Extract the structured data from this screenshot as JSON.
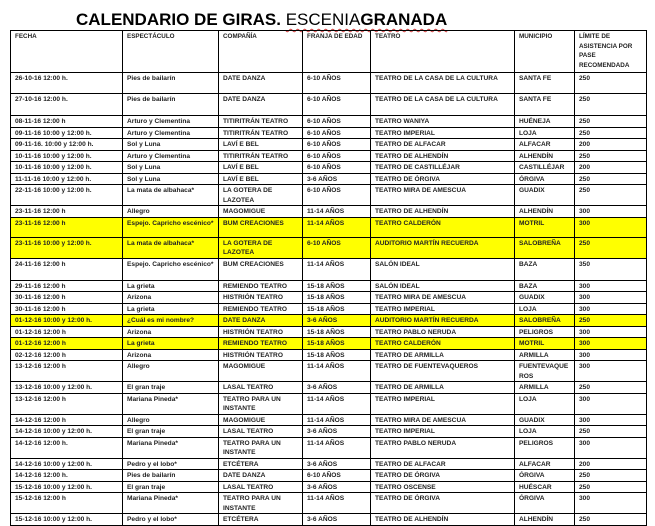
{
  "title": {
    "main": "CALENDARIO DE GIRAS.",
    "brand_prefix": "ESCENIA",
    "brand_suffix": "GRANADA"
  },
  "highlight_color": "#ffff00",
  "columns": [
    "FECHA",
    "ESPECTÁCULO",
    "COMPAÑÍA",
    "FRANJA DE EDAD",
    "TEATRO",
    "MUNICIPIO",
    "LÍMITE DE ASISTENCIA POR PASE RECOMENDADA"
  ],
  "rows": [
    {
      "fecha": "26-10-16 12:00 h.",
      "espectaculo": "Pies de bailarín",
      "compania": "DATE DANZA",
      "edad": "6-10 AÑOS",
      "teatro": "TEATRO DE LA CASA DE LA CULTURA",
      "municipio": "SANTA FE",
      "limite": "250",
      "highlighted": false
    },
    {
      "fecha": "27-10-16 12:00 h.",
      "espectaculo": "Pies de bailarín",
      "compania": "DATE DANZA",
      "edad": "6-10 AÑOS",
      "teatro": "TEATRO DE LA CASA DE LA CULTURA",
      "municipio": "SANTA FE",
      "limite": "250",
      "highlighted": false
    },
    {
      "fecha": "08-11-16  12:00 h",
      "espectaculo": "Arturo y Clementina",
      "compania": "TITIRITRÁN TEATRO",
      "edad": "6-10 AÑOS",
      "teatro": "TEATRO WANIYA",
      "municipio": "HUÉNEJA",
      "limite": "250",
      "highlighted": false
    },
    {
      "fecha": "09-11-16 10:00 y 12:00 h.",
      "espectaculo": "Arturo y Clementina",
      "compania": "TITIRITRÁN TEATRO",
      "edad": "6-10 AÑOS",
      "teatro": "TEATRO IMPERIAL",
      "municipio": "LOJA",
      "limite": "250",
      "highlighted": false
    },
    {
      "fecha": "09-11-16. 10:00 y 12:00 h.",
      "espectaculo": "Sol y Luna",
      "compania": "LAVÍ E BEL",
      "edad": "6-10 AÑOS",
      "teatro": "TEATRO DE ALFACAR",
      "municipio": "ALFACAR",
      "limite": "200",
      "highlighted": false
    },
    {
      "fecha": "10-11-16 10:00 y 12:00 h.",
      "espectaculo": "Arturo y Clementina",
      "compania": "TITIRITRÁN TEATRO",
      "edad": "6-10 AÑOS",
      "teatro": "TEATRO DE ALHENDÍN",
      "municipio": "ALHENDÍN",
      "limite": "250",
      "highlighted": false
    },
    {
      "fecha": "10-11-16 10:00 y 12:00 h.",
      "espectaculo": "Sol y Luna",
      "compania": "LAVÍ E BEL",
      "edad": "6-10 AÑOS",
      "teatro": "TEATRO DE CASTILLÉJAR",
      "municipio": "CASTILLÉJAR",
      "limite": "200",
      "highlighted": false
    },
    {
      "fecha": "11-11-16 10:00 y 12:00 h.",
      "espectaculo": "Sol y Luna",
      "compania": "LAVÍ E BEL",
      "edad": "3-6 AÑOS",
      "teatro": "TEATRO DE ÓRGIVA",
      "municipio": "ÓRGIVA",
      "limite": "250",
      "highlighted": false
    },
    {
      "fecha": "22-11-16 10:00 y 12:00 h.",
      "espectaculo": "La mata de albahaca*",
      "compania": "LA GOTERA DE LAZOTEA",
      "edad": "6-10 AÑOS",
      "teatro": "TEATRO MIRA DE AMESCUA",
      "municipio": "GUADIX",
      "limite": "250",
      "highlighted": false
    },
    {
      "fecha": "23-11-16 12:00 h",
      "espectaculo": "Allegro",
      "compania": "MAGOMIGUE",
      "edad": "11-14 AÑOS",
      "teatro": "TEATRO DE ALHENDÍN",
      "municipio": "ALHENDÍN",
      "limite": "300",
      "highlighted": false
    },
    {
      "fecha": "23-11-16 12:00 h",
      "espectaculo": "Espejo. Capricho escénico*",
      "compania": "BUM CREACIONES",
      "edad": "11-14 AÑOS",
      "teatro": "TEATRO CALDERÓN",
      "municipio": "MOTRIL",
      "limite": "300",
      "highlighted": true
    },
    {
      "fecha": "23-11-16 10:00 y 12:00 h.",
      "espectaculo": "La mata de albahaca*",
      "compania": "LA GOTERA DE LAZOTEA",
      "edad": "6-10 AÑOS",
      "teatro": "AUDITORIO MARTÍN RECUERDA",
      "municipio": "SALOBREÑA",
      "limite": "250",
      "highlighted": true
    },
    {
      "fecha": "24-11-16 12:00 h",
      "espectaculo": "Espejo. Capricho escénico*",
      "compania": "BUM CREACIONES",
      "edad": "11-14 AÑOS",
      "teatro": "SALÓN IDEAL",
      "municipio": "BAZA",
      "limite": "350",
      "highlighted": false
    },
    {
      "fecha": "29-11-16 12:00 h",
      "espectaculo": "La grieta",
      "compania": "REMIENDO TEATRO",
      "edad": "15-18 AÑOS",
      "teatro": "SALÓN IDEAL",
      "municipio": "BAZA",
      "limite": "300",
      "highlighted": false
    },
    {
      "fecha": "30-11-16 12:00 h",
      "espectaculo": "Arizona",
      "compania": "HISTRIÓN TEATRO",
      "edad": "15-18 AÑOS",
      "teatro": "TEATRO MIRA DE AMESCUA",
      "municipio": "GUADIX",
      "limite": "300",
      "highlighted": false
    },
    {
      "fecha": "30-11-16 12:00 h",
      "espectaculo": "La grieta",
      "compania": "REMIENDO TEATRO",
      "edad": "15-18 AÑOS",
      "teatro": "TEATRO IMPERIAL",
      "municipio": "LOJA",
      "limite": "300",
      "highlighted": false
    },
    {
      "fecha": "01-12-16 10:00 y 12:00 h.",
      "espectaculo": "¿Cuál es mi nombre?",
      "compania": "DATE DANZA",
      "edad": "3-6 AÑOS",
      "teatro": "AUDITORIO MARTÍN RECUERDA",
      "municipio": "SALOBREÑA",
      "limite": "250",
      "highlighted": true
    },
    {
      "fecha": "01-12-16 12:00 h",
      "espectaculo": "Arizona",
      "compania": "HISTRIÓN TEATRO",
      "edad": "15-18 AÑOS",
      "teatro": "TEATRO PABLO NERUDA",
      "municipio": "PELIGROS",
      "limite": "300",
      "highlighted": false
    },
    {
      "fecha": "01-12-16 12:00 h",
      "espectaculo": "La grieta",
      "compania": "REMIENDO TEATRO",
      "edad": "15-18 AÑOS",
      "teatro": "TEATRO CALDERÓN",
      "municipio": "MOTRIL",
      "limite": "300",
      "highlighted": true
    },
    {
      "fecha": "02-12-16 12:00 h",
      "espectaculo": "Arizona",
      "compania": "HISTRIÓN TEATRO",
      "edad": "15-18 AÑOS",
      "teatro": "TEATRO DE ARMILLA",
      "municipio": "ARMILLA",
      "limite": "300",
      "highlighted": false
    },
    {
      "fecha": "13-12-16 12:00 h",
      "espectaculo": "Allegro",
      "compania": "MAGOMIGUE",
      "edad": "11-14 AÑOS",
      "teatro": "TEATRO DE FUENTEVAQUEROS",
      "municipio": "FUENTEVAQUEROS",
      "limite": "300",
      "highlighted": false
    },
    {
      "fecha": "13-12-16 10:00 y 12:00 h.",
      "espectaculo": "El gran traje",
      "compania": "LASAL TEATRO",
      "edad": "3-6 AÑOS",
      "teatro": "TEATRO DE ARMILLA",
      "municipio": "ARMILLA",
      "limite": "250",
      "highlighted": false
    },
    {
      "fecha": "13-12-16 12:00 h",
      "espectaculo": "Mariana Pineda*",
      "compania": "TEATRO  PARA UN INSTANTE",
      "edad": "11-14 AÑOS",
      "teatro": "TEATRO IMPERIAL",
      "municipio": "LOJA",
      "limite": "300",
      "highlighted": false
    },
    {
      "fecha": "14-12-16 12:00 h",
      "espectaculo": "Allegro",
      "compania": "MAGOMIGUE",
      "edad": "11-14 AÑOS",
      "teatro": "TEATRO MIRA DE AMESCUA",
      "municipio": "GUADIX",
      "limite": "300",
      "highlighted": false
    },
    {
      "fecha": "14-12-16 10:00 y 12:00 h.",
      "espectaculo": "El gran traje",
      "compania": "LASAL TEATRO",
      "edad": "3-6 AÑOS",
      "teatro": "TEATRO IMPERIAL",
      "municipio": "LOJA",
      "limite": "250",
      "highlighted": false
    },
    {
      "fecha": "14-12-16 12:00 h.",
      "espectaculo": "Mariana Pineda*",
      "compania": "TEATRO  PARA UN INSTANTE",
      "edad": "11-14 AÑOS",
      "teatro": "TEATRO PABLO NERUDA",
      "municipio": "PELIGROS",
      "limite": "300",
      "highlighted": false
    },
    {
      "fecha": "14-12-16 10:00 y 12:00 h.",
      "espectaculo": "Pedro y el lobo*",
      "compania": "ETCÉTERA",
      "edad": "3-6 AÑOS",
      "teatro": "TEATRO DE ALFACAR",
      "municipio": "ALFACAR",
      "limite": "200",
      "highlighted": false
    },
    {
      "fecha": "14-12-16 12:00 h.",
      "espectaculo": "Pies de bailarín",
      "compania": "DATE DANZA",
      "edad": "6-10 AÑOS",
      "teatro": "TEATRO DE ÓRGIVA",
      "municipio": "ÓRGIVA",
      "limite": "250",
      "highlighted": false
    },
    {
      "fecha": "15-12-16 10:00 y 12:00 h.",
      "espectaculo": "El gran traje",
      "compania": "LASAL TEATRO",
      "edad": "3-6 AÑOS",
      "teatro": "TEATRO OSCENSE",
      "municipio": "HUÉSCAR",
      "limite": "250",
      "highlighted": false
    },
    {
      "fecha": "15-12-16 12:00 h",
      "espectaculo": "Mariana Pineda*",
      "compania": "TEATRO  PARA UN INSTANTE",
      "edad": "11-14 AÑOS",
      "teatro": "TEATRO DE ÓRGIVA",
      "municipio": "ÓRGIVA",
      "limite": "300",
      "highlighted": false
    },
    {
      "fecha": "15-12-16 10:00 y 12:00 h.",
      "espectaculo": "Pedro y el lobo*",
      "compania": "ETCÉTERA",
      "edad": "3-6 AÑOS",
      "teatro": "TEATRO DE ALHENDÍN",
      "municipio": "ALHENDÍN",
      "limite": "250",
      "highlighted": false
    }
  ]
}
